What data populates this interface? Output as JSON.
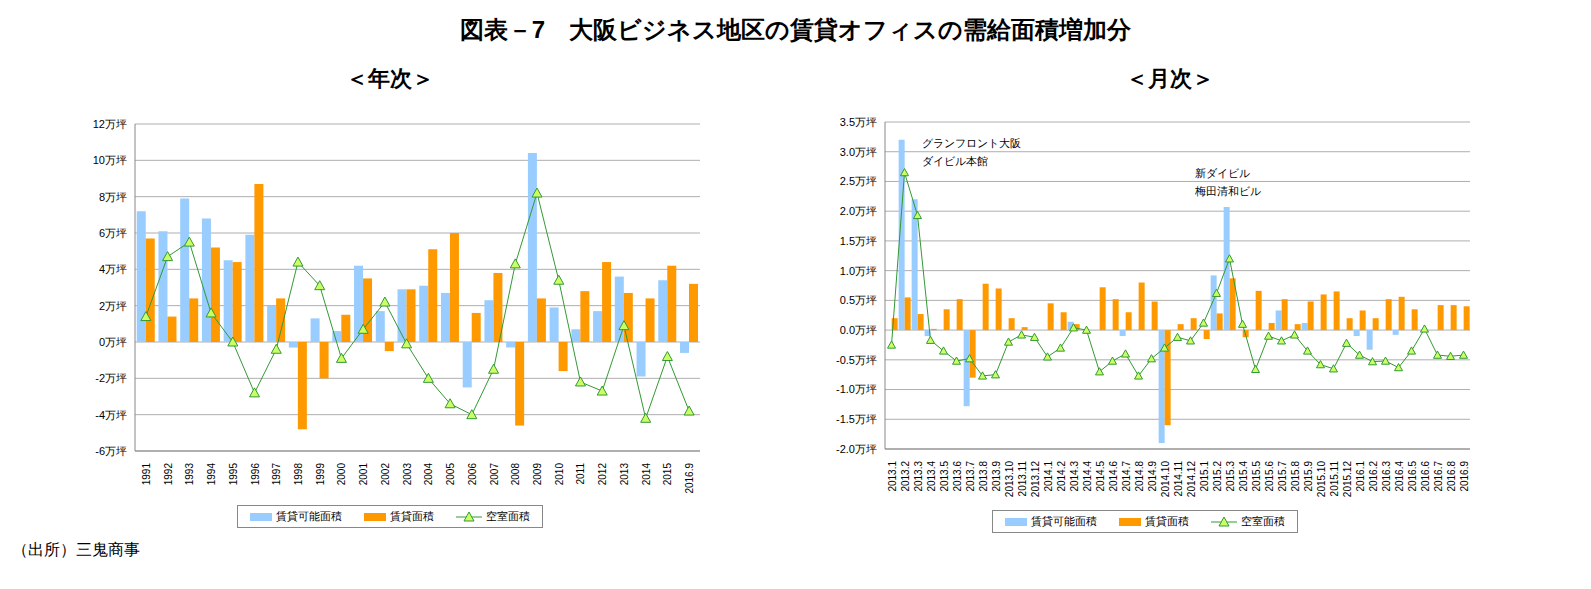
{
  "title": "図表－7　大阪ビジネス地区の賃貸オフィスの需給面積増加分",
  "source": "（出所）三鬼商事",
  "chart_data": [
    {
      "type": "bar",
      "title": "＜年次＞",
      "categories": [
        "1991",
        "1992",
        "1993",
        "1994",
        "1995",
        "1996",
        "1997",
        "1998",
        "1999",
        "2000",
        "2001",
        "2002",
        "2003",
        "2004",
        "2005",
        "2006",
        "2007",
        "2008",
        "2009",
        "2010",
        "2011",
        "2012",
        "2013",
        "2014",
        "2015",
        "2016.9"
      ],
      "series": [
        {
          "name": "賃貸可能面積",
          "type": "bar",
          "color": "#99CCFF",
          "values": [
            7.2,
            6.1,
            7.9,
            6.8,
            4.5,
            5.9,
            2.0,
            -0.3,
            1.3,
            0.6,
            4.2,
            1.7,
            2.9,
            3.1,
            2.7,
            -2.5,
            2.3,
            -0.3,
            10.4,
            1.9,
            0.7,
            1.7,
            3.6,
            -1.9,
            3.4,
            -0.6
          ]
        },
        {
          "name": "賃貸面積",
          "type": "bar",
          "color": "#FF9900",
          "values": [
            5.7,
            1.4,
            2.4,
            5.2,
            4.4,
            8.7,
            2.4,
            -4.8,
            -2.0,
            1.5,
            3.5,
            -0.5,
            2.9,
            5.1,
            6.0,
            1.6,
            3.8,
            -4.6,
            2.4,
            -1.6,
            2.8,
            4.4,
            2.7,
            2.4,
            4.2,
            3.2
          ]
        },
        {
          "name": "空室面積",
          "type": "line",
          "color": "#339933",
          "marker": "triangle",
          "values": [
            1.4,
            4.7,
            5.5,
            1.6,
            0.0,
            -2.8,
            -0.4,
            4.4,
            3.1,
            -0.9,
            0.7,
            2.2,
            -0.1,
            -2.0,
            -3.4,
            -4.0,
            -1.5,
            4.3,
            8.2,
            3.4,
            -2.2,
            -2.7,
            0.9,
            -4.2,
            -0.8,
            -3.8
          ]
        }
      ],
      "ylim": [
        -6,
        12
      ],
      "yticks": [
        {
          "value": -6,
          "label": "-6万坪"
        },
        {
          "value": -4,
          "label": "-4万坪"
        },
        {
          "value": -2,
          "label": "-2万坪"
        },
        {
          "value": 0,
          "label": "0万坪"
        },
        {
          "value": 2,
          "label": "2万坪"
        },
        {
          "value": 4,
          "label": "4万坪"
        },
        {
          "value": 6,
          "label": "6万坪"
        },
        {
          "value": 8,
          "label": "8万坪"
        },
        {
          "value": 10,
          "label": "10万坪"
        },
        {
          "value": 12,
          "label": "12万坪"
        }
      ],
      "grid": true
    },
    {
      "type": "bar",
      "title": "＜月次＞",
      "categories": [
        "2013.1",
        "2013.2",
        "2013.3",
        "2013.4",
        "2013.5",
        "2013.6",
        "2013.7",
        "2013.8",
        "2013.9",
        "2013.10",
        "2013.11",
        "2013.12",
        "2014.1",
        "2014.2",
        "2014.3",
        "2014.4",
        "2014.5",
        "2014.6",
        "2014.7",
        "2014.8",
        "2014.9",
        "2014.10",
        "2014.11",
        "2014.12",
        "2015.1",
        "2015.2",
        "2015.3",
        "2015.4",
        "2015.5",
        "2015.6",
        "2015.7",
        "2015.8",
        "2015.9",
        "2015.10",
        "2015.11",
        "2015.12",
        "2016.1",
        "2016.2",
        "2016.3",
        "2016.4",
        "2016.5",
        "2016.6",
        "2016.7",
        "2016.8",
        "2016.9"
      ],
      "series": [
        {
          "name": "賃貸可能面積",
          "type": "bar",
          "color": "#99CCFF",
          "values": [
            0,
            3.2,
            2.2,
            -0.1,
            0,
            0,
            -1.28,
            0,
            0,
            0,
            0,
            0,
            0,
            0,
            0.14,
            0,
            0,
            0,
            -0.1,
            0,
            0,
            -1.9,
            0,
            0,
            0,
            0.92,
            2.07,
            0,
            0,
            0,
            0.33,
            0,
            0.12,
            0,
            0,
            0,
            -0.1,
            -0.33,
            0,
            -0.08,
            0,
            0,
            0,
            0,
            0
          ]
        },
        {
          "name": "賃貸面積",
          "type": "bar",
          "color": "#FF9900",
          "values": [
            0.2,
            0.55,
            0.27,
            0.02,
            0.35,
            0.52,
            -0.8,
            0.78,
            0.7,
            0.2,
            0.05,
            0.0,
            0.45,
            0.3,
            0.1,
            0.0,
            0.72,
            0.52,
            0.3,
            0.8,
            0.48,
            -1.6,
            0.1,
            0.2,
            -0.15,
            0.28,
            0.87,
            -0.12,
            0.66,
            0.12,
            0.52,
            0.1,
            0.48,
            0.6,
            0.65,
            0.2,
            0.33,
            0.2,
            0.52,
            0.56,
            0.35,
            0.0,
            0.42,
            0.42,
            0.4
          ]
        },
        {
          "name": "空室面積",
          "type": "line",
          "color": "#339933",
          "marker": "triangle",
          "values": [
            -0.25,
            2.65,
            1.93,
            -0.17,
            -0.35,
            -0.52,
            -0.48,
            -0.77,
            -0.75,
            -0.2,
            -0.08,
            -0.12,
            -0.45,
            -0.3,
            0.04,
            0.0,
            -0.7,
            -0.52,
            -0.4,
            -0.77,
            -0.48,
            -0.3,
            -0.12,
            -0.18,
            0.12,
            0.62,
            1.2,
            0.1,
            -0.66,
            -0.1,
            -0.18,
            -0.08,
            -0.35,
            -0.58,
            -0.65,
            -0.22,
            -0.42,
            -0.53,
            -0.52,
            -0.63,
            -0.35,
            0.02,
            -0.42,
            -0.44,
            -0.42
          ]
        }
      ],
      "ylim": [
        -2.0,
        3.5
      ],
      "yticks": [
        {
          "value": -2.0,
          "label": "-2.0万坪"
        },
        {
          "value": -1.5,
          "label": "-1.5万坪"
        },
        {
          "value": -1.0,
          "label": "-1.0万坪"
        },
        {
          "value": -0.5,
          "label": "-0.5万坪"
        },
        {
          "value": 0,
          "label": "0.0万坪"
        },
        {
          "value": 0.5,
          "label": "0.5万坪"
        },
        {
          "value": 1.0,
          "label": "1.0万坪"
        },
        {
          "value": 1.5,
          "label": "1.5万坪"
        },
        {
          "value": 2.0,
          "label": "2.0万坪"
        },
        {
          "value": 2.5,
          "label": "2.5万坪"
        },
        {
          "value": 3.0,
          "label": "3.0万坪"
        },
        {
          "value": 3.5,
          "label": "3.5万坪"
        }
      ],
      "grid": true,
      "annotations": [
        "グランフロント大阪",
        "ダイビル本館",
        "新ダイビル",
        "梅田清和ビル"
      ]
    }
  ]
}
